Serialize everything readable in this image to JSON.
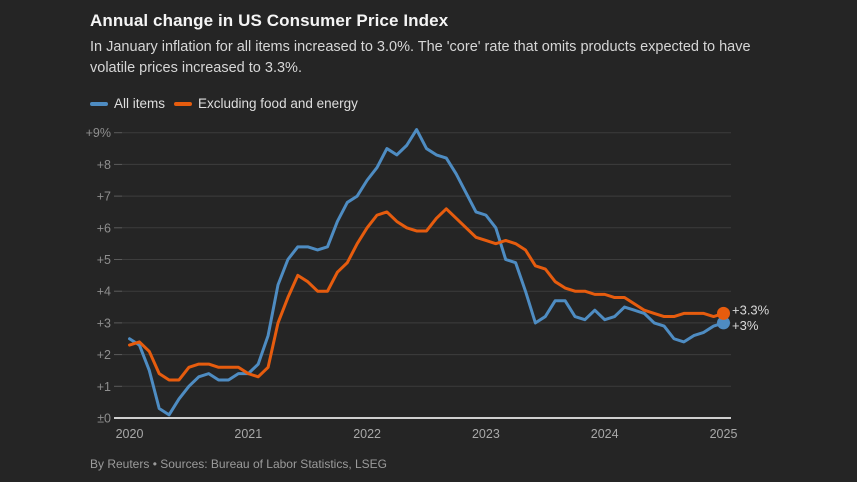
{
  "header": {
    "title": "Annual change in US Consumer Price Index",
    "subtitle": "In January inflation for all items increased to 3.0%. The 'core' rate that omits products expected to have volatile prices increased to 3.3%."
  },
  "footer": {
    "credit": "By Reuters • Sources: Bureau of Labor Statistics, LSEG"
  },
  "colors": {
    "background": "#252525",
    "gridline": "#3d3d3d",
    "axis_line": "#cfcfcf",
    "axis_label": "#9a9a9a",
    "all_items_blue": "#4e8cc2",
    "core_orange": "#e65c0e"
  },
  "chart_data": {
    "type": "line",
    "title": "Annual change in US Consumer Price Index",
    "x_frequency": "monthly",
    "x_range": [
      "2020-01",
      "2025-01"
    ],
    "x_ticks": [
      "2020",
      "2021",
      "2022",
      "2023",
      "2024",
      "2025"
    ],
    "y_ticks": [
      {
        "value": 0,
        "label": "±0"
      },
      {
        "value": 1,
        "label": "+1"
      },
      {
        "value": 2,
        "label": "+2"
      },
      {
        "value": 3,
        "label": "+3"
      },
      {
        "value": 4,
        "label": "+4"
      },
      {
        "value": 5,
        "label": "+5"
      },
      {
        "value": 6,
        "label": "+6"
      },
      {
        "value": 7,
        "label": "+7"
      },
      {
        "value": 8,
        "label": "+8"
      },
      {
        "value": 9,
        "label": "+9%"
      }
    ],
    "ylim": [
      0,
      9.5
    ],
    "grid": true,
    "legend_position": "top-left",
    "series": [
      {
        "name": "All items",
        "color": "#4e8cc2",
        "end_label": "+3%",
        "values": [
          2.5,
          2.3,
          1.5,
          0.3,
          0.1,
          0.6,
          1.0,
          1.3,
          1.4,
          1.2,
          1.2,
          1.4,
          1.4,
          1.7,
          2.6,
          4.2,
          5.0,
          5.4,
          5.4,
          5.3,
          5.4,
          6.2,
          6.8,
          7.0,
          7.5,
          7.9,
          8.5,
          8.3,
          8.6,
          9.1,
          8.5,
          8.3,
          8.2,
          7.7,
          7.1,
          6.5,
          6.4,
          6.0,
          5.0,
          4.9,
          4.0,
          3.0,
          3.2,
          3.7,
          3.7,
          3.2,
          3.1,
          3.4,
          3.1,
          3.2,
          3.5,
          3.4,
          3.3,
          3.0,
          2.9,
          2.5,
          2.4,
          2.6,
          2.7,
          2.9,
          3.0
        ]
      },
      {
        "name": "Excluding food and energy",
        "color": "#e65c0e",
        "end_label": "+3.3%",
        "values": [
          2.3,
          2.4,
          2.1,
          1.4,
          1.2,
          1.2,
          1.6,
          1.7,
          1.7,
          1.6,
          1.6,
          1.6,
          1.4,
          1.3,
          1.6,
          3.0,
          3.8,
          4.5,
          4.3,
          4.0,
          4.0,
          4.6,
          4.9,
          5.5,
          6.0,
          6.4,
          6.5,
          6.2,
          6.0,
          5.9,
          5.9,
          6.3,
          6.6,
          6.3,
          6.0,
          5.7,
          5.6,
          5.5,
          5.6,
          5.5,
          5.3,
          4.8,
          4.7,
          4.3,
          4.1,
          4.0,
          4.0,
          3.9,
          3.9,
          3.8,
          3.8,
          3.6,
          3.4,
          3.3,
          3.2,
          3.2,
          3.3,
          3.3,
          3.3,
          3.2,
          3.3
        ]
      }
    ]
  }
}
